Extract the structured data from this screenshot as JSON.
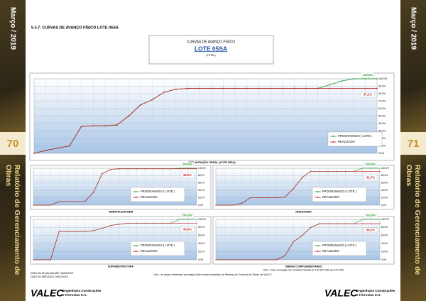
{
  "sidebar_left": {
    "date": "Março / 2019",
    "page_number": "70",
    "report_title": "Relatório de Gerenciamento de Obras"
  },
  "sidebar_right": {
    "date": "Março / 2019",
    "page_number": "71",
    "report_title": "Relatório de Gerenciamento de Obras"
  },
  "section_title": "5.4.7.   CURVAS DE AVANÇO FÍSICO LOTE 05SA",
  "title_box": {
    "title": "CURVAS DE AVANÇO FÍSICO",
    "lot": "LOTE 05SA",
    "scope": "(TOTAL)"
  },
  "chart_data": [
    {
      "type": "line",
      "title": "IMPLANTAÇÃO GERAL (LOTE 05SA)",
      "ylim": [
        0,
        100
      ],
      "grid": true,
      "yticks": [
        {
          "value": 0,
          "label": "0,0%"
        },
        {
          "value": 10,
          "label": "10,0%"
        },
        {
          "value": 20,
          "label": "20,0%"
        },
        {
          "value": 30,
          "label": "30,0%"
        },
        {
          "value": 40,
          "label": "40,0%"
        },
        {
          "value": 50,
          "label": "50,0%"
        },
        {
          "value": 60,
          "label": "60,0%"
        },
        {
          "value": 70,
          "label": "70,0%"
        },
        {
          "value": 80,
          "label": "80,0%"
        },
        {
          "value": 90,
          "label": "90,0%"
        },
        {
          "value": 100,
          "label": "100,0%"
        }
      ],
      "series": [
        {
          "name": "PROGRAMADO ( LOTE )",
          "color": "#2e9e3a",
          "values": [
            0,
            4,
            7,
            10,
            36,
            37,
            37,
            38,
            50,
            65,
            72,
            82,
            86,
            87.1,
            87.1,
            87.1,
            87.1,
            87.1,
            87.1,
            87.1,
            87.1,
            87.1,
            87.1,
            87.1,
            87.1,
            92,
            97,
            100,
            100,
            100
          ],
          "value_labels": [
            null,
            null,
            null,
            null,
            null,
            null,
            null,
            null,
            null,
            null,
            null,
            null,
            null,
            null,
            null,
            null,
            null,
            null,
            null,
            null,
            null,
            null,
            null,
            null,
            null,
            null,
            null,
            null,
            null,
            "100,0%"
          ]
        },
        {
          "name": "REALIZADO",
          "color": "#c0282d",
          "values": [
            0,
            4,
            7,
            10,
            36,
            37,
            37,
            38,
            50,
            65,
            72,
            82,
            86,
            87.1,
            87.1,
            87.1,
            87.1,
            87.1,
            87.1,
            87.1,
            87.1,
            87.1,
            87.1,
            87.1,
            87.1,
            87.1,
            87.1,
            87.1,
            87.1,
            87.1
          ],
          "value_labels": [
            null,
            null,
            null,
            null,
            null,
            null,
            null,
            null,
            null,
            null,
            null,
            null,
            null,
            null,
            null,
            null,
            null,
            null,
            null,
            null,
            null,
            null,
            null,
            null,
            null,
            null,
            null,
            null,
            null,
            "87,1%"
          ]
        }
      ]
    },
    {
      "type": "line",
      "title": "TERRAPLENAGEM",
      "ylim": [
        0,
        100
      ],
      "grid": true,
      "yticks": [
        {
          "value": 0,
          "label": "0,0%"
        },
        {
          "value": 20,
          "label": "20,0%"
        },
        {
          "value": 40,
          "label": "40,0%"
        },
        {
          "value": 60,
          "label": "60,0%"
        },
        {
          "value": 80,
          "label": "80,0%"
        },
        {
          "value": 100,
          "label": "100,0%"
        }
      ],
      "series": [
        {
          "name": "PROGRAMADO ( LOTE )",
          "color": "#2e9e3a",
          "values": [
            0,
            0,
            0,
            10,
            10,
            10,
            10,
            35,
            85,
            97,
            98.6,
            98.6,
            98.6,
            98.6,
            98.6,
            98.6,
            98.6,
            100,
            100,
            100
          ],
          "value_labels": [
            null,
            null,
            null,
            null,
            null,
            null,
            null,
            null,
            null,
            null,
            null,
            null,
            null,
            null,
            null,
            null,
            null,
            null,
            null,
            "100,0%"
          ]
        },
        {
          "name": "REALIZADO",
          "color": "#c0282d",
          "values": [
            0,
            0,
            0,
            10,
            10,
            10,
            10,
            35,
            85,
            97,
            98.6,
            98.6,
            98.6,
            98.6,
            98.6,
            98.6,
            98.6,
            98.6,
            98.6,
            98.6
          ],
          "value_labels": [
            null,
            null,
            null,
            null,
            null,
            null,
            null,
            null,
            null,
            null,
            null,
            null,
            null,
            null,
            null,
            null,
            null,
            null,
            null,
            "98,6%"
          ]
        }
      ]
    },
    {
      "type": "line",
      "title": "DRENAGEM",
      "ylim": [
        0,
        100
      ],
      "grid": true,
      "yticks": [
        {
          "value": 0,
          "label": "0,0%"
        },
        {
          "value": 20,
          "label": "20,0%"
        },
        {
          "value": 40,
          "label": "40,0%"
        },
        {
          "value": 60,
          "label": "60,0%"
        },
        {
          "value": 80,
          "label": "80,0%"
        },
        {
          "value": 100,
          "label": "100,0%"
        }
      ],
      "series": [
        {
          "name": "PROGRAMADO ( LOTE )",
          "color": "#2e9e3a",
          "values": [
            0,
            0,
            0,
            5,
            20,
            20,
            20,
            20,
            22,
            45,
            75,
            91.7,
            91.7,
            91.7,
            91.7,
            91.7,
            91.7,
            100,
            100,
            100
          ],
          "value_labels": [
            null,
            null,
            null,
            null,
            null,
            null,
            null,
            null,
            null,
            null,
            null,
            null,
            null,
            null,
            null,
            null,
            null,
            null,
            null,
            "100,0%"
          ]
        },
        {
          "name": "REALIZADO",
          "color": "#c0282d",
          "values": [
            0,
            0,
            0,
            5,
            20,
            20,
            20,
            20,
            22,
            45,
            75,
            91.7,
            91.7,
            91.7,
            91.7,
            91.7,
            91.7,
            91.7,
            91.7,
            91.7
          ],
          "value_labels": [
            null,
            null,
            null,
            null,
            null,
            null,
            null,
            null,
            null,
            null,
            null,
            null,
            null,
            null,
            null,
            null,
            null,
            null,
            null,
            "91,7%"
          ]
        }
      ]
    },
    {
      "type": "line",
      "title": "SUPERESTRUTURA",
      "ylim": [
        0,
        100
      ],
      "grid": true,
      "yticks": [
        {
          "value": 0,
          "label": "0,0%"
        },
        {
          "value": 20,
          "label": "20,0%"
        },
        {
          "value": 40,
          "label": "40,0%"
        },
        {
          "value": 60,
          "label": "60,0%"
        },
        {
          "value": 80,
          "label": "80,0%"
        },
        {
          "value": 100,
          "label": "100,0%"
        }
      ],
      "series": [
        {
          "name": "PROGRAMADO ( LOTE )",
          "color": "#2e9e3a",
          "values": [
            0,
            0,
            0,
            70,
            70,
            70,
            70,
            72,
            78,
            85,
            88,
            90.5,
            90.5,
            90.5,
            90.5,
            90.5,
            90.5,
            100,
            100,
            100
          ],
          "value_labels": [
            null,
            null,
            null,
            null,
            null,
            null,
            null,
            null,
            null,
            null,
            null,
            null,
            null,
            null,
            null,
            null,
            null,
            null,
            null,
            "100,0%"
          ]
        },
        {
          "name": "REALIZADO",
          "color": "#c0282d",
          "values": [
            0,
            0,
            0,
            70,
            70,
            70,
            70,
            72,
            78,
            85,
            88,
            90.5,
            90.5,
            90.5,
            90.5,
            90.5,
            90.5,
            90.5,
            90.5,
            90.5
          ],
          "value_labels": [
            null,
            null,
            null,
            null,
            null,
            null,
            null,
            null,
            null,
            null,
            null,
            null,
            null,
            null,
            null,
            null,
            null,
            null,
            null,
            "90,5%"
          ]
        }
      ]
    },
    {
      "type": "line",
      "title": "OBRAS COMPLEMENTARES",
      "note": "Obs.: Início execução do Contrato Parcela do km 507+900 ao 517+920",
      "ylim": [
        0,
        100
      ],
      "grid": true,
      "yticks": [
        {
          "value": 0,
          "label": "0,0%"
        },
        {
          "value": 20,
          "label": "20,0%"
        },
        {
          "value": 40,
          "label": "40,0%"
        },
        {
          "value": 60,
          "label": "60,0%"
        },
        {
          "value": 80,
          "label": "80,0%"
        },
        {
          "value": 100,
          "label": "100,0%"
        }
      ],
      "series": [
        {
          "name": "PROGRAMADO ( LOTE )",
          "color": "#2e9e3a",
          "values": [
            0,
            0,
            0,
            0,
            0,
            0,
            0,
            0,
            10,
            45,
            60,
            80,
            89.2,
            89.2,
            89.2,
            89.2,
            89.2,
            100,
            100,
            100
          ],
          "value_labels": [
            null,
            null,
            null,
            null,
            null,
            null,
            null,
            null,
            null,
            null,
            null,
            null,
            null,
            null,
            null,
            null,
            null,
            null,
            null,
            "100,0%"
          ]
        },
        {
          "name": "REALIZADO",
          "color": "#c0282d",
          "values": [
            0,
            0,
            0,
            0,
            0,
            0,
            0,
            0,
            10,
            45,
            60,
            80,
            89.2,
            89.2,
            89.2,
            89.2,
            89.2,
            89.2,
            89.2,
            89.2
          ],
          "value_labels": [
            null,
            null,
            null,
            null,
            null,
            null,
            null,
            null,
            null,
            null,
            null,
            null,
            null,
            null,
            null,
            null,
            null,
            null,
            null,
            "89,2%"
          ]
        }
      ]
    }
  ],
  "footer": {
    "update_date": "DATA DE ATUALIZAÇÃO: 28/02/2019",
    "measurement_date": "DATA DE MEDIÇÃO: 28/02/2019",
    "note": "Obs.: os dados referentes ao avanço físico foram extraídos do Sistema de Controle de Obras da VALEC."
  },
  "logo_left": {
    "name": "VALEC",
    "line_1": "Engenharia Construções",
    "line_2": "e Ferrovias S.A."
  },
  "logo_right": {
    "name": "VALEC",
    "line_1": "Engenharia Construções",
    "line_2": "e Ferrovias S.A."
  }
}
